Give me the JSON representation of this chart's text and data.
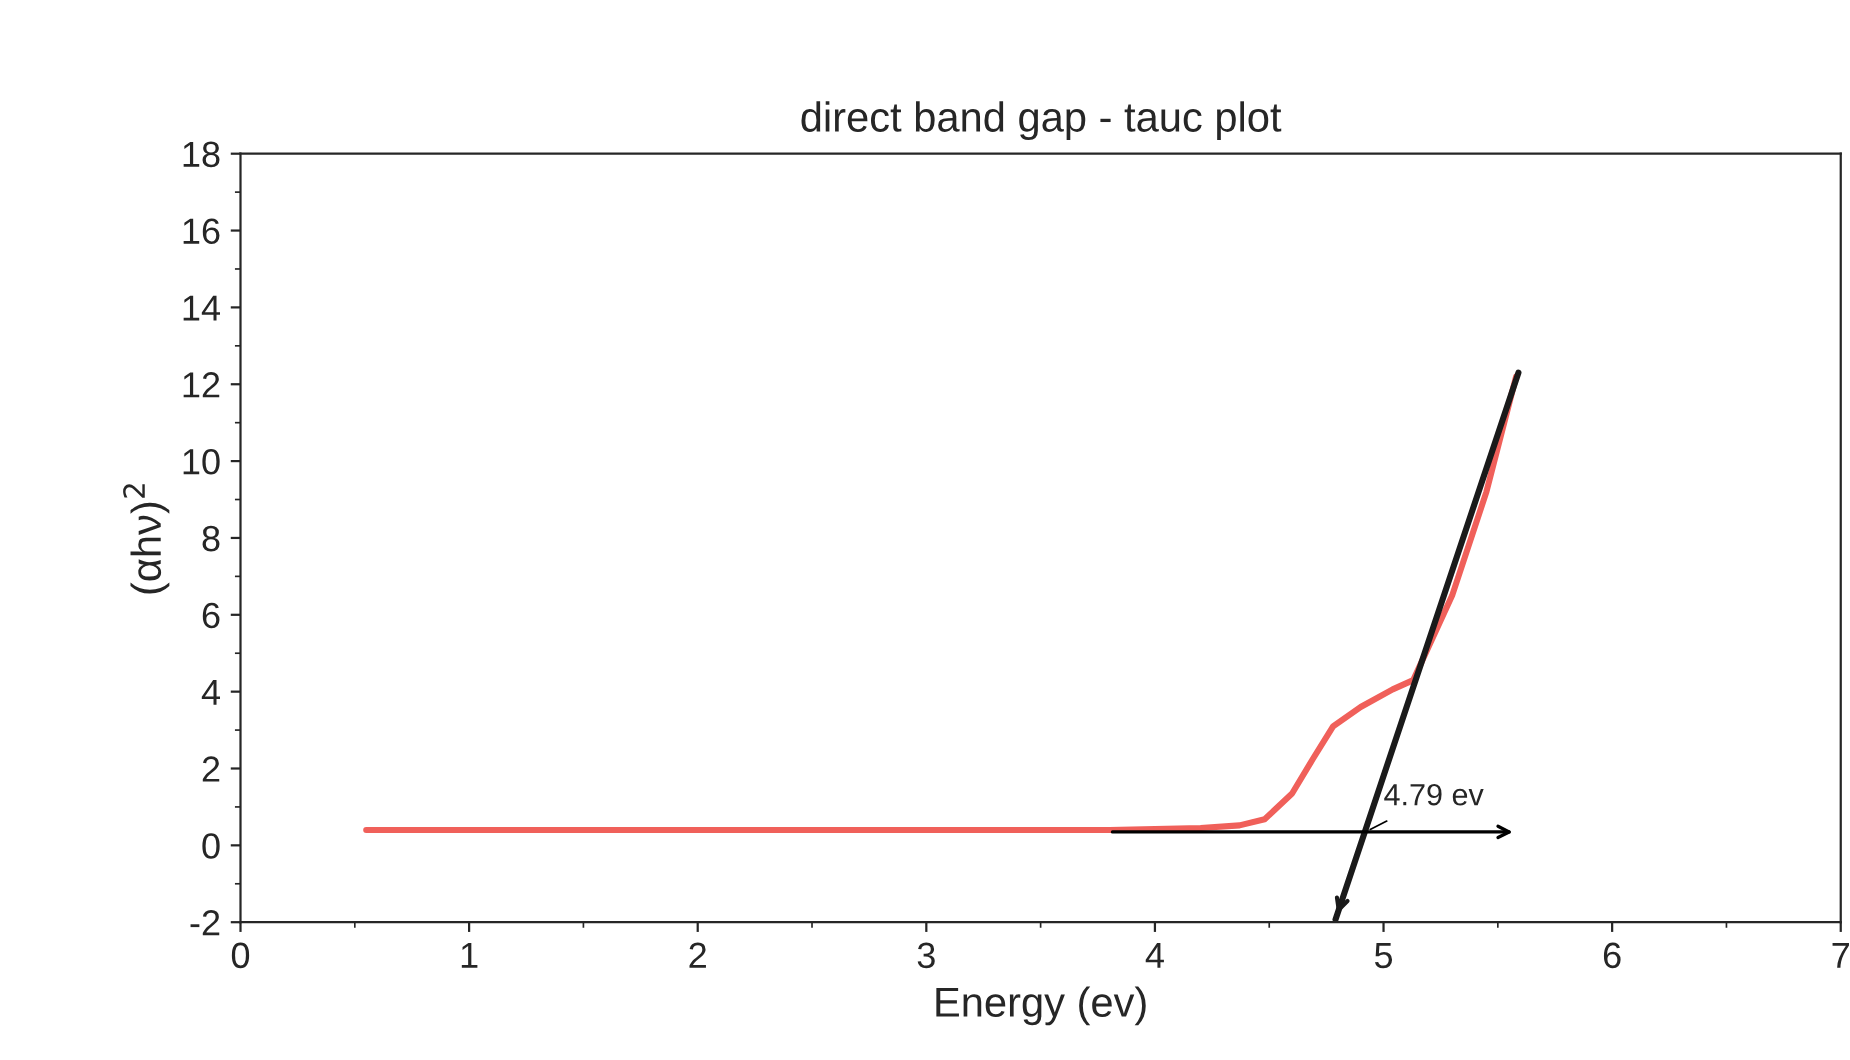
{
  "chart_data": {
    "type": "line",
    "title": "direct band gap - tauc plot",
    "xlabel": "Energy (ev)",
    "ylabel": "(αhν)$^{2}$",
    "xlim": [
      0,
      7
    ],
    "xticks": [
      0,
      1,
      2,
      3,
      4,
      5,
      6,
      7
    ],
    "ylim": [
      -2,
      18
    ],
    "yticks": [
      -2,
      0,
      2,
      4,
      6,
      8,
      10,
      12,
      14,
      16,
      18
    ],
    "grid": false,
    "legend": false,
    "marker": "none",
    "line_style": "solid",
    "series": [
      {
        "color": "#f0605a",
        "x": [
          0.55,
          1.0,
          2.0,
          3.0,
          3.8,
          4.2,
          4.37,
          4.48,
          4.6,
          4.69,
          4.78,
          4.9,
          5.04,
          5.13,
          5.3,
          5.45,
          5.58
        ],
        "values": [
          0.4,
          0.4,
          0.4,
          0.4,
          0.4,
          0.45,
          0.52,
          0.68,
          1.35,
          2.24,
          3.1,
          3.6,
          4.06,
          4.3,
          6.5,
          9.2,
          12.2
        ]
      },
      {
        "color": "#1a1a1a",
        "x": [
          4.79,
          5.59
        ],
        "values": [
          -1.93,
          12.3
        ]
      }
    ],
    "annotations": [
      {
        "text": "4.79 ev",
        "x": 4.92,
        "y": 0.35
      }
    ]
  }
}
